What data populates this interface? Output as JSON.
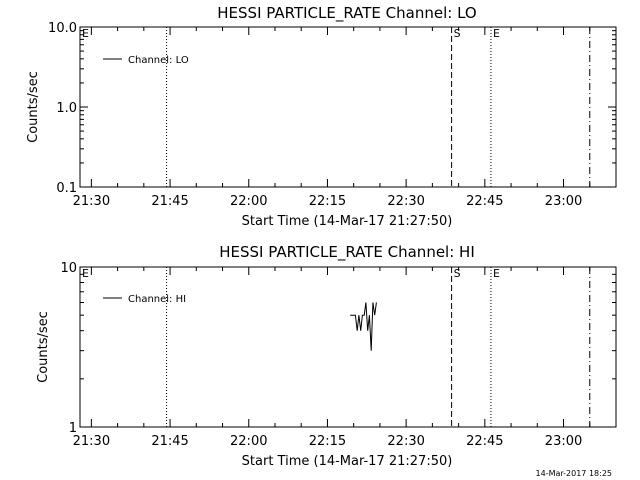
{
  "footer_stamp": "14-Mar-2017 18:25",
  "chart_data": [
    {
      "type": "line",
      "title": "HESSI PARTICLE_RATE Channel: LO",
      "xlabel": "Start Time (14-Mar-17 21:27:50)",
      "ylabel": "Counts/sec",
      "yscale": "log",
      "xlim": [
        "21:27:50",
        "23:10:00"
      ],
      "ylim": [
        0.1,
        10.0
      ],
      "x_ticks": [
        "21:30",
        "21:45",
        "22:00",
        "22:15",
        "22:30",
        "22:45",
        "23:00"
      ],
      "y_ticks": [
        {
          "value": 10.0,
          "label": "10.0"
        },
        {
          "value": 1.0,
          "label": "1.0"
        },
        {
          "value": 0.1,
          "label": "0.1"
        }
      ],
      "legend_position": "top-left",
      "series": [
        {
          "name": "Channel: LO",
          "x": [],
          "values": []
        }
      ],
      "markers": [
        {
          "time": "21:27:50",
          "style": "dotted",
          "label": "E"
        },
        {
          "time": "21:44:20",
          "style": "dotted",
          "label": ""
        },
        {
          "time": "22:38:40",
          "style": "dashed",
          "label": "S"
        },
        {
          "time": "22:46:10",
          "style": "dotted",
          "label": "E"
        },
        {
          "time": "23:05:00",
          "style": "dashdot",
          "label": ""
        }
      ]
    },
    {
      "type": "line",
      "title": "HESSI PARTICLE_RATE Channel: HI",
      "xlabel": "Start Time (14-Mar-17 21:27:50)",
      "ylabel": "Counts/sec",
      "yscale": "log",
      "xlim": [
        "21:27:50",
        "23:10:00"
      ],
      "ylim": [
        1,
        10
      ],
      "x_ticks": [
        "21:30",
        "21:45",
        "22:00",
        "22:15",
        "22:30",
        "22:45",
        "23:00"
      ],
      "y_ticks": [
        {
          "value": 10,
          "label": "10"
        },
        {
          "value": 1,
          "label": "1"
        }
      ],
      "legend_position": "top-left",
      "series": [
        {
          "name": "Channel: HI",
          "x": [
            "22:19:20",
            "22:20:00",
            "22:20:20",
            "22:20:40",
            "22:21:00",
            "22:21:20",
            "22:21:40",
            "22:22:00",
            "22:22:20",
            "22:22:40",
            "22:23:00",
            "22:23:20",
            "22:23:40",
            "22:24:00",
            "22:24:20"
          ],
          "values": [
            5.0,
            5.0,
            5.0,
            4.0,
            5.0,
            4.0,
            5.0,
            5.0,
            6.0,
            4.0,
            5.0,
            3.0,
            6.0,
            5.0,
            6.0
          ]
        }
      ],
      "markers": [
        {
          "time": "21:27:50",
          "style": "dotted",
          "label": "E"
        },
        {
          "time": "21:44:20",
          "style": "dotted",
          "label": ""
        },
        {
          "time": "22:38:40",
          "style": "dashed",
          "label": "S"
        },
        {
          "time": "22:46:10",
          "style": "dotted",
          "label": "E"
        },
        {
          "time": "23:05:00",
          "style": "dashdot",
          "label": ""
        }
      ]
    }
  ]
}
